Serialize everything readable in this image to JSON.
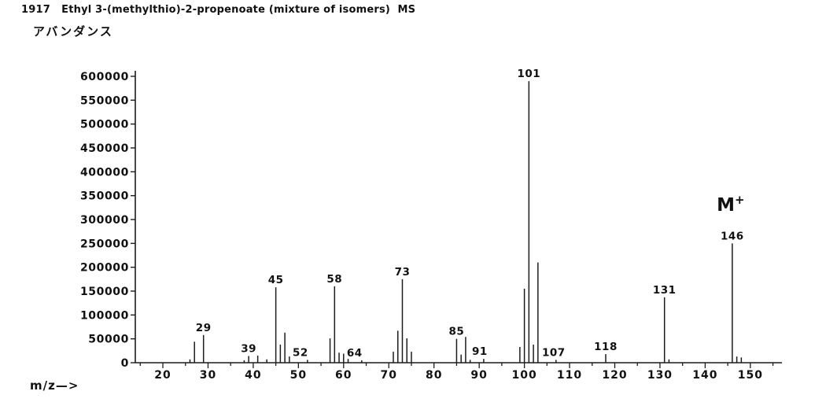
{
  "chart_data": {
    "type": "bar",
    "title": "1917   Ethyl 3-(methylthio)-2-propenoate (mixture of isomers)  MS",
    "ylabel": "アバンダンス",
    "xlabel": "m/z—>",
    "xlim": [
      14,
      157
    ],
    "ylim": [
      0,
      600000
    ],
    "grid": false,
    "y_ticks": [
      0,
      50000,
      100000,
      150000,
      200000,
      250000,
      300000,
      350000,
      400000,
      450000,
      500000,
      550000,
      600000
    ],
    "x_major_ticks": [
      20,
      30,
      40,
      50,
      60,
      70,
      80,
      90,
      100,
      110,
      120,
      130,
      140,
      150
    ],
    "x_minor_step": 5,
    "annotation": {
      "text": "M",
      "sup": "+",
      "mz": 146
    },
    "peaks": [
      {
        "mz": 26,
        "abundance": 7000
      },
      {
        "mz": 27,
        "abundance": 44000
      },
      {
        "mz": 29,
        "abundance": 58000,
        "label": "29"
      },
      {
        "mz": 38,
        "abundance": 5000
      },
      {
        "mz": 39,
        "abundance": 14000,
        "label": "39"
      },
      {
        "mz": 41,
        "abundance": 15000
      },
      {
        "mz": 43,
        "abundance": 7000
      },
      {
        "mz": 45,
        "abundance": 158000,
        "label": "45"
      },
      {
        "mz": 46,
        "abundance": 38000
      },
      {
        "mz": 47,
        "abundance": 63000
      },
      {
        "mz": 48,
        "abundance": 13000
      },
      {
        "mz": 52,
        "abundance": 6000,
        "label": "52",
        "label_dx": -9
      },
      {
        "mz": 57,
        "abundance": 51000
      },
      {
        "mz": 58,
        "abundance": 160000,
        "label": "58"
      },
      {
        "mz": 59,
        "abundance": 21000
      },
      {
        "mz": 60,
        "abundance": 19000
      },
      {
        "mz": 61,
        "abundance": 8000
      },
      {
        "mz": 64,
        "abundance": 5000,
        "label": "64",
        "label_dx": -9
      },
      {
        "mz": 71,
        "abundance": 23000
      },
      {
        "mz": 72,
        "abundance": 67000
      },
      {
        "mz": 73,
        "abundance": 175000,
        "label": "73"
      },
      {
        "mz": 74,
        "abundance": 51000
      },
      {
        "mz": 75,
        "abundance": 23000
      },
      {
        "mz": 85,
        "abundance": 50000,
        "label": "85"
      },
      {
        "mz": 86,
        "abundance": 17000
      },
      {
        "mz": 87,
        "abundance": 54000
      },
      {
        "mz": 88,
        "abundance": 6000
      },
      {
        "mz": 91,
        "abundance": 8000,
        "label": "91",
        "label_dx": -5
      },
      {
        "mz": 99,
        "abundance": 33000
      },
      {
        "mz": 100,
        "abundance": 155000
      },
      {
        "mz": 101,
        "abundance": 590000,
        "label": "101"
      },
      {
        "mz": 102,
        "abundance": 38000
      },
      {
        "mz": 103,
        "abundance": 210000
      },
      {
        "mz": 107,
        "abundance": 6000,
        "label": "107",
        "label_dx": -3
      },
      {
        "mz": 118,
        "abundance": 18000,
        "label": "118"
      },
      {
        "mz": 131,
        "abundance": 137000,
        "label": "131"
      },
      {
        "mz": 132,
        "abundance": 7000
      },
      {
        "mz": 146,
        "abundance": 250000,
        "label": "146"
      },
      {
        "mz": 147,
        "abundance": 13000
      },
      {
        "mz": 148,
        "abundance": 11000
      }
    ]
  }
}
